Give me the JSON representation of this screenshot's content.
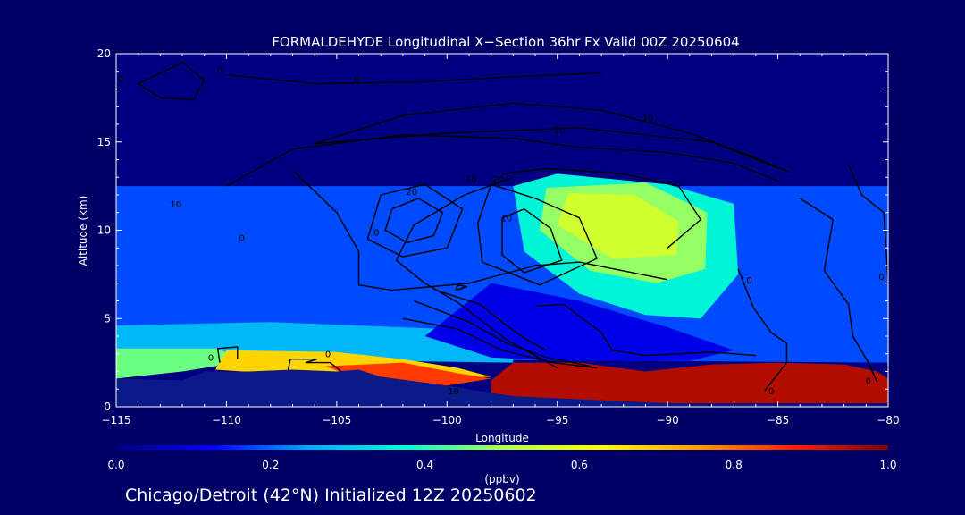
{
  "chart_data": {
    "type": "heatmap",
    "title": "FORMALDEHYDE Longitudinal X−Section 36hr  Fx Valid 00Z 20250604",
    "xlabel": "Longitude",
    "ylabel": "Altitude (km)",
    "xlim": [
      -115,
      -80
    ],
    "ylim": [
      0,
      20
    ],
    "x_ticks": [
      -115,
      -110,
      -105,
      -100,
      -95,
      -90,
      -85,
      -80
    ],
    "x_tick_labels": [
      "−115",
      "−110",
      "−105",
      "−100",
      "−95",
      "−90",
      "−85",
      "−80"
    ],
    "y_ticks": [
      0,
      5,
      10,
      15,
      20
    ],
    "y_tick_labels": [
      "0",
      "5",
      "10",
      "15",
      "20"
    ],
    "colorbar": {
      "label": "(ppbv)",
      "range": [
        0.0,
        1.0
      ],
      "ticks": [
        "0.0",
        "0.2",
        "0.4",
        "0.6",
        "0.8",
        "1.0"
      ],
      "colormap": [
        "#000080",
        "#0000ff",
        "#00aaff",
        "#00ffd0",
        "#b0ff50",
        "#ffff00",
        "#ffa000",
        "#ff2000",
        "#800000"
      ]
    },
    "fill_regions": [
      {
        "value": 0.18,
        "points": [
          [
            -115,
            2.8
          ],
          [
            -115,
            12.5
          ],
          [
            -80,
            12.5
          ],
          [
            -80,
            2.5
          ]
        ]
      },
      {
        "value": 0.27,
        "points": [
          [
            -115,
            2.8
          ],
          [
            -115,
            4.6
          ],
          [
            -108,
            4.8
          ],
          [
            -104,
            4.6
          ],
          [
            -100,
            4.4
          ],
          [
            -97,
            4.6
          ],
          [
            -97,
            2.5
          ],
          [
            -103,
            2.6
          ],
          [
            -110,
            3.0
          ]
        ]
      },
      {
        "value": 0.1,
        "points": [
          [
            -101,
            4.0
          ],
          [
            -98,
            7.0
          ],
          [
            -94,
            6.0
          ],
          [
            -90,
            4.5
          ],
          [
            -87,
            3.2
          ],
          [
            -89,
            2.6
          ],
          [
            -95,
            2.6
          ],
          [
            -98,
            2.8
          ]
        ]
      },
      {
        "value": 0.36,
        "points": [
          [
            -97,
            12.5
          ],
          [
            -95,
            13.2
          ],
          [
            -90,
            12.6
          ],
          [
            -87,
            11.5
          ],
          [
            -86.8,
            7.5
          ],
          [
            -88.5,
            5.0
          ],
          [
            -91,
            5.2
          ],
          [
            -94,
            6.4
          ],
          [
            -96.5,
            8.8
          ]
        ]
      },
      {
        "value": 0.48,
        "points": [
          [
            -95.5,
            12.4
          ],
          [
            -91,
            12.7
          ],
          [
            -88.2,
            11.0
          ],
          [
            -88.3,
            7.8
          ],
          [
            -90.5,
            7.0
          ],
          [
            -93.5,
            7.7
          ],
          [
            -95.8,
            10.0
          ]
        ]
      },
      {
        "value": 0.55,
        "points": [
          [
            -94.5,
            12.1
          ],
          [
            -91.5,
            12.0
          ],
          [
            -89.5,
            10.5
          ],
          [
            -89.6,
            8.6
          ],
          [
            -92.5,
            8.4
          ],
          [
            -95.0,
            10.3
          ]
        ]
      },
      {
        "value": 0.45,
        "points": [
          [
            -115,
            1.6
          ],
          [
            -115,
            3.3
          ],
          [
            -110.5,
            3.3
          ],
          [
            -109,
            2.6
          ],
          [
            -112,
            2.0
          ]
        ]
      },
      {
        "value": 0.68,
        "points": [
          [
            -110.5,
            2.1
          ],
          [
            -110,
            3.2
          ],
          [
            -105,
            3.1
          ],
          [
            -102,
            2.7
          ],
          [
            -99.5,
            2.2
          ],
          [
            -98,
            1.7
          ],
          [
            -103,
            1.5
          ]
        ]
      },
      {
        "value": 0.85,
        "points": [
          [
            -105.5,
            2.3
          ],
          [
            -102,
            2.5
          ],
          [
            -99.5,
            1.9
          ],
          [
            -98,
            1.6
          ],
          [
            -101,
            1.0
          ],
          [
            -104.5,
            1.8
          ]
        ]
      },
      {
        "value": 0.95,
        "points": [
          [
            -98,
            1.5
          ],
          [
            -97,
            2.5
          ],
          [
            -94,
            2.5
          ],
          [
            -91,
            2.0
          ],
          [
            -88,
            2.4
          ],
          [
            -85,
            2.5
          ],
          [
            -82,
            2.4
          ],
          [
            -80.5,
            2.0
          ],
          [
            -80,
            1.6
          ],
          [
            -80,
            0.2
          ],
          [
            -98,
            0.2
          ]
        ]
      }
    ],
    "terrain": [
      [
        -115,
        1.6
      ],
      [
        -112,
        1.5
      ],
      [
        -111,
        2.0
      ],
      [
        -109,
        2.0
      ],
      [
        -107,
        2.1
      ],
      [
        -105,
        2.0
      ],
      [
        -104,
        2.1
      ],
      [
        -103,
        1.7
      ],
      [
        -100,
        1.2
      ],
      [
        -98,
        0.8
      ],
      [
        -97,
        0.6
      ],
      [
        -90,
        0.2
      ],
      [
        -80,
        0.1
      ]
    ],
    "contours": [
      {
        "points": [
          [
            -114,
            18.3
          ],
          [
            -112,
            19.5
          ],
          [
            -111,
            18.5
          ],
          [
            -111.5,
            17.4
          ],
          [
            -113,
            17.5
          ],
          [
            -114,
            18.3
          ]
        ]
      },
      {
        "points": [
          [
            -110,
            18.8
          ],
          [
            -106,
            18.3
          ],
          [
            -101,
            18.4
          ],
          [
            -97,
            18.7
          ],
          [
            -93,
            18.9
          ]
        ]
      },
      {
        "points": [
          [
            -106,
            14.9
          ],
          [
            -102,
            16.5
          ],
          [
            -97,
            17.2
          ],
          [
            -93,
            16.8
          ],
          [
            -89,
            15.5
          ],
          [
            -86,
            14.1
          ],
          [
            -84.5,
            13.3
          ],
          [
            -88,
            15.0
          ],
          [
            -94,
            15.8
          ],
          [
            -100,
            15.5
          ],
          [
            -106,
            14.9
          ]
        ]
      },
      {
        "points": [
          [
            -110,
            12.5
          ],
          [
            -107,
            14.6
          ],
          [
            -102,
            15.4
          ],
          [
            -97,
            15.2
          ],
          [
            -94,
            14.7
          ],
          [
            -90,
            14.4
          ],
          [
            -87,
            13.8
          ],
          [
            -85,
            12.8
          ]
        ]
      },
      {
        "points": [
          [
            -107,
            13.4
          ],
          [
            -105,
            11.0
          ],
          [
            -104,
            8.8
          ],
          [
            -104,
            6.9
          ],
          [
            -102.5,
            6.6
          ],
          [
            -99,
            7.0
          ],
          [
            -96,
            8.0
          ],
          [
            -94,
            8.2
          ],
          [
            -90,
            7.2
          ]
        ]
      },
      {
        "points": [
          [
            -102.5,
            11.2
          ],
          [
            -101.3,
            11.8
          ],
          [
            -100.2,
            11.0
          ],
          [
            -100.6,
            9.7
          ],
          [
            -101.8,
            9.3
          ],
          [
            -102.8,
            10.0
          ],
          [
            -102.5,
            11.2
          ]
        ]
      },
      {
        "points": [
          [
            -103,
            12.0
          ],
          [
            -101,
            12.6
          ],
          [
            -99.3,
            11.2
          ],
          [
            -100,
            9.0
          ],
          [
            -102,
            8.5
          ],
          [
            -103.6,
            9.5
          ],
          [
            -103,
            12.0
          ]
        ]
      },
      {
        "points": [
          [
            -97.5,
            13.2
          ],
          [
            -95.5,
            13.5
          ],
          [
            -92,
            13.2
          ],
          [
            -89.5,
            12.5
          ],
          [
            -88.5,
            10.6
          ],
          [
            -90,
            9.0
          ]
        ]
      },
      {
        "points": [
          [
            -97.5,
            10.7
          ],
          [
            -96.5,
            11.2
          ],
          [
            -95.3,
            10.1
          ],
          [
            -94.8,
            8.3
          ],
          [
            -96.5,
            7.6
          ],
          [
            -97.5,
            8.6
          ],
          [
            -97.5,
            10.7
          ]
        ]
      },
      {
        "points": [
          [
            -98,
            12.6
          ],
          [
            -96,
            11.8
          ],
          [
            -94,
            10.7
          ],
          [
            -93.2,
            8.4
          ],
          [
            -95.8,
            6.9
          ],
          [
            -98.4,
            8.2
          ],
          [
            -98.6,
            10.4
          ],
          [
            -98,
            12.6
          ]
        ]
      },
      {
        "points": [
          [
            -100.5,
            6.6
          ],
          [
            -98.5,
            5.8
          ],
          [
            -97.5,
            4.8
          ],
          [
            -96.4,
            3.8
          ],
          [
            -95.5,
            3.2
          ]
        ]
      },
      {
        "points": [
          [
            -101.5,
            6.0
          ],
          [
            -99,
            4.8
          ],
          [
            -97.3,
            3.6
          ],
          [
            -95.5,
            2.8
          ],
          [
            -93.5,
            2.3
          ]
        ]
      },
      {
        "points": [
          [
            -102,
            5.0
          ],
          [
            -99.5,
            4.4
          ],
          [
            -97.5,
            3.2
          ],
          [
            -95.2,
            2.5
          ],
          [
            -93.2,
            2.2
          ]
        ]
      },
      {
        "points": [
          [
            -97,
            13.0
          ],
          [
            -99.2,
            12.0
          ],
          [
            -101.5,
            10.3
          ],
          [
            -102.3,
            8.3
          ],
          [
            -101,
            7.0
          ],
          [
            -99.5,
            5.9
          ],
          [
            -97.3,
            3.8
          ],
          [
            -95,
            2.2
          ]
        ]
      },
      {
        "points": [
          [
            -96,
            5.7
          ],
          [
            -94.7,
            5.8
          ],
          [
            -93,
            4.2
          ],
          [
            -92.5,
            3.2
          ],
          [
            -91,
            2.9
          ],
          [
            -88,
            3.1
          ],
          [
            -86,
            2.9
          ]
        ]
      },
      {
        "points": [
          [
            -86.8,
            7.8
          ],
          [
            -86.1,
            5.6
          ],
          [
            -85.3,
            4.2
          ],
          [
            -84.6,
            3.6
          ],
          [
            -84.6,
            2.5
          ],
          [
            -85.6,
            0.9
          ]
        ]
      },
      {
        "points": [
          [
            -84,
            11.8
          ],
          [
            -82.5,
            10.6
          ],
          [
            -82.9,
            7.7
          ],
          [
            -81.8,
            5.8
          ],
          [
            -81.6,
            4.0
          ],
          [
            -80.9,
            2.5
          ],
          [
            -80.5,
            1.4
          ]
        ]
      },
      {
        "points": [
          [
            -81.8,
            13.7
          ],
          [
            -81.2,
            12.0
          ],
          [
            -80.2,
            11.0
          ],
          [
            -80,
            7.1
          ]
        ]
      },
      {
        "points": [
          [
            -110.3,
            2.5
          ],
          [
            -110.4,
            3.3
          ],
          [
            -109.5,
            3.4
          ],
          [
            -109.5,
            2.7
          ]
        ]
      },
      {
        "points": [
          [
            -107.2,
            2.1
          ],
          [
            -107.1,
            2.7
          ],
          [
            -105.9,
            2.7
          ],
          [
            -106.4,
            2.5
          ],
          [
            -105.3,
            2.5
          ],
          [
            -104.8,
            2.0
          ]
        ]
      },
      {
        "points": [
          [
            -99.5,
            6.9
          ],
          [
            -99.1,
            6.8
          ],
          [
            -99.6,
            6.6
          ],
          [
            -99.5,
            6.9
          ]
        ]
      }
    ],
    "contour_labels": [
      {
        "text": "0",
        "x": -114.8,
        "y": 18.4
      },
      {
        "text": "0",
        "x": -110.3,
        "y": 18.9
      },
      {
        "text": "0",
        "x": -104.1,
        "y": 18.4
      },
      {
        "text": "10",
        "x": -112.3,
        "y": 11.3
      },
      {
        "text": "10",
        "x": -94.9,
        "y": 15.5
      },
      {
        "text": "10",
        "x": -90.9,
        "y": 16.2
      },
      {
        "text": "10",
        "x": -98.9,
        "y": 12.7
      },
      {
        "text": "20",
        "x": -101.6,
        "y": 12.0
      },
      {
        "text": "20",
        "x": -97.7,
        "y": 12.7
      },
      {
        "text": "10",
        "x": -97.3,
        "y": 10.5
      },
      {
        "text": "0",
        "x": -109.3,
        "y": 9.4
      },
      {
        "text": "0",
        "x": -103.2,
        "y": 9.7
      },
      {
        "text": "0",
        "x": -86.3,
        "y": 7.0
      },
      {
        "text": "0",
        "x": -80.3,
        "y": 7.2
      },
      {
        "text": "0",
        "x": -110.7,
        "y": 2.6
      },
      {
        "text": "0",
        "x": -105.4,
        "y": 2.8
      },
      {
        "text": "10",
        "x": -99.7,
        "y": 0.7
      },
      {
        "text": "0",
        "x": -85.3,
        "y": 0.7
      },
      {
        "text": "0",
        "x": -80.9,
        "y": 1.3
      }
    ]
  },
  "footer": "Chicago/Detroit (42°N) Initialized 12Z 20250602"
}
